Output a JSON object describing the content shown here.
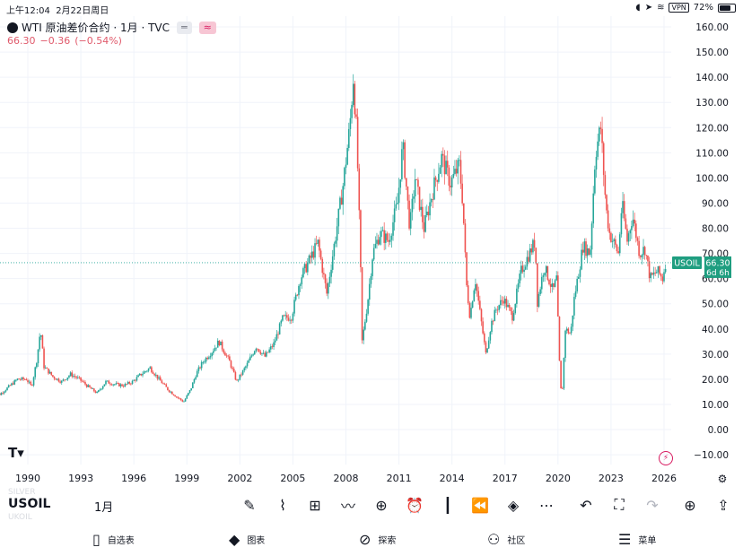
{
  "status_bar": {
    "time": "上午12:04",
    "date": "2月22日周日",
    "vpn": "VPN",
    "battery": "72%"
  },
  "header": {
    "title": "WTI 原油差价合约 · 1月 · TVC",
    "price": "66.30",
    "change": "−0.36",
    "change_pct": "(−0.54%)"
  },
  "toolbar": {
    "symbol": "USOIL",
    "ghost_above": "SILVER",
    "ghost_below": "UKOIL",
    "interval": "1月",
    "tools": [
      "draw-icon",
      "indicators-icon",
      "templates-icon",
      "compare-icon",
      "add-icon",
      "alert-icon",
      "chart-type-icon",
      "replay-icon",
      "layers-icon",
      "more-icon",
      "undo-icon",
      "fullscreen-icon",
      "redo-icon",
      "idea-icon",
      "share-icon"
    ]
  },
  "nav": {
    "items": [
      {
        "label": "自选表",
        "icon": "watchlist-icon"
      },
      {
        "label": "图表",
        "icon": "chart-icon"
      },
      {
        "label": "探索",
        "icon": "explore-icon"
      },
      {
        "label": "社区",
        "icon": "community-icon"
      },
      {
        "label": "菜单",
        "icon": "menu-icon"
      }
    ]
  },
  "price_label": {
    "symbol": "USOIL",
    "price": "66.30",
    "countdown": "6d 6h"
  },
  "colors": {
    "up": "#26a69a",
    "down": "#ef5350",
    "badge": "#1f9e80",
    "accent": "#2962ff"
  },
  "chart_data": {
    "type": "line",
    "title": "WTI 原油差价合约 · 1月 · TVC",
    "xlabel": "",
    "ylabel": "",
    "x_ticks": [
      1990,
      1993,
      1996,
      1999,
      2002,
      2005,
      2008,
      2011,
      2014,
      2017,
      2020,
      2023,
      2026
    ],
    "y_ticks": [
      -10,
      0,
      10,
      20,
      30,
      40,
      50,
      60,
      70,
      80,
      90,
      100,
      110,
      120,
      130,
      140,
      150,
      160
    ],
    "ylim": [
      -13,
      165
    ],
    "xlim": [
      1987.9,
      2027.1
    ],
    "grid": true,
    "last_price": 66.3,
    "series": [
      {
        "values": [
          [
            1988.0,
            15
          ],
          [
            1988.5,
            14
          ],
          [
            1989.0,
            17
          ],
          [
            1989.5,
            20
          ],
          [
            1990.0,
            20
          ],
          [
            1990.3,
            17
          ],
          [
            1990.6,
            28
          ],
          [
            1990.8,
            40
          ],
          [
            1991.0,
            25
          ],
          [
            1991.5,
            21
          ],
          [
            1992.0,
            19
          ],
          [
            1992.5,
            22
          ],
          [
            1993.0,
            20
          ],
          [
            1993.5,
            17
          ],
          [
            1994.0,
            14.5
          ],
          [
            1994.5,
            19
          ],
          [
            1995.0,
            18
          ],
          [
            1995.5,
            17.5
          ],
          [
            1996.0,
            19
          ],
          [
            1996.5,
            22
          ],
          [
            1997.0,
            24.5
          ],
          [
            1997.5,
            20
          ],
          [
            1998.0,
            16
          ],
          [
            1998.5,
            13
          ],
          [
            1998.9,
            11
          ],
          [
            1999.3,
            16
          ],
          [
            1999.6,
            22
          ],
          [
            2000.0,
            27
          ],
          [
            2000.5,
            31
          ],
          [
            2000.9,
            35
          ],
          [
            2001.5,
            27
          ],
          [
            2001.9,
            19
          ],
          [
            2002.5,
            26
          ],
          [
            2003.0,
            33
          ],
          [
            2003.5,
            29
          ],
          [
            2004.0,
            34
          ],
          [
            2004.5,
            44
          ],
          [
            2005.0,
            45
          ],
          [
            2005.5,
            60
          ],
          [
            2006.0,
            67
          ],
          [
            2006.5,
            74
          ],
          [
            2007.0,
            54
          ],
          [
            2007.5,
            77
          ],
          [
            2007.9,
            96
          ],
          [
            2008.3,
            120
          ],
          [
            2008.5,
            140
          ],
          [
            2008.7,
            116
          ],
          [
            2008.9,
            68
          ],
          [
            2009.0,
            35
          ],
          [
            2009.3,
            50
          ],
          [
            2009.6,
            70
          ],
          [
            2010.0,
            78
          ],
          [
            2010.5,
            75
          ],
          [
            2011.0,
            90
          ],
          [
            2011.3,
            113
          ],
          [
            2011.7,
            80
          ],
          [
            2012.0,
            100
          ],
          [
            2012.5,
            80
          ],
          [
            2013.0,
            95
          ],
          [
            2013.5,
            108
          ],
          [
            2014.0,
            98
          ],
          [
            2014.5,
            105
          ],
          [
            2014.7,
            90
          ],
          [
            2014.9,
            58
          ],
          [
            2015.1,
            45
          ],
          [
            2015.4,
            60
          ],
          [
            2015.7,
            45
          ],
          [
            2016.0,
            30
          ],
          [
            2016.3,
            42
          ],
          [
            2016.6,
            48
          ],
          [
            2017.0,
            52
          ],
          [
            2017.5,
            45
          ],
          [
            2018.0,
            63
          ],
          [
            2018.8,
            75
          ],
          [
            2018.9,
            50
          ],
          [
            2019.3,
            65
          ],
          [
            2019.8,
            55
          ],
          [
            2020.0,
            60
          ],
          [
            2020.2,
            20
          ],
          [
            2020.3,
            12
          ],
          [
            2020.5,
            40
          ],
          [
            2020.8,
            38
          ],
          [
            2021.0,
            52
          ],
          [
            2021.5,
            73
          ],
          [
            2021.9,
            70
          ],
          [
            2022.2,
            110
          ],
          [
            2022.5,
            120
          ],
          [
            2022.8,
            88
          ],
          [
            2023.0,
            78
          ],
          [
            2023.5,
            70
          ],
          [
            2023.7,
            90
          ],
          [
            2024.0,
            75
          ],
          [
            2024.3,
            85
          ],
          [
            2024.7,
            70
          ],
          [
            2025.0,
            72
          ],
          [
            2025.3,
            60
          ],
          [
            2025.7,
            63
          ],
          [
            2026.0,
            60
          ],
          [
            2026.15,
            66.3
          ]
        ]
      }
    ]
  }
}
